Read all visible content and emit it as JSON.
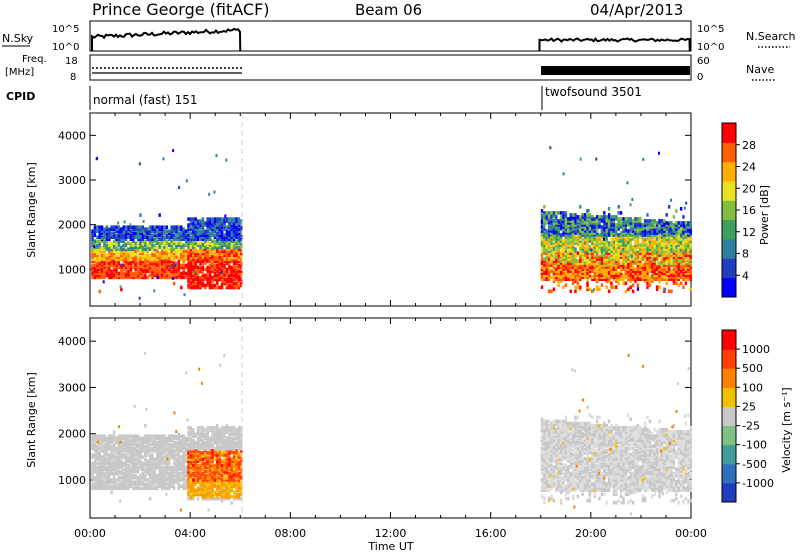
{
  "header": {
    "station": "Prince George (fitACF)",
    "beam": "Beam 06",
    "date": "04/Apr/2013"
  },
  "top_panels": {
    "nsky_label": "N.Sky",
    "nsky_ticks": [
      "10^5",
      "10^0"
    ],
    "nsearch_label": "N.Search",
    "nsearch_ticks": [
      "10^5",
      "10^0"
    ],
    "freq_label_1": "Freq.",
    "freq_label_2": "[MHz]",
    "freq_ticks": [
      "18",
      "8"
    ],
    "nave_label": "Nave",
    "nave_ticks": [
      "60",
      "0"
    ],
    "cpid_label": "CPID",
    "cpid_segments": [
      "normal (fast) 151",
      "twofsound 3501"
    ]
  },
  "chart_data": [
    {
      "type": "heatmap",
      "title": "",
      "xlabel": "Time UT",
      "ylabel": "Slant Range [km]",
      "xlim": [
        "00:00",
        "24:00"
      ],
      "ylim": [
        180,
        4500
      ],
      "yticks": [
        "1000",
        "2000",
        "3000",
        "4000"
      ],
      "xticks": [
        "00:00",
        "04:00",
        "08:00",
        "12:00",
        "16:00",
        "20:00",
        "00:00"
      ],
      "colorbar": {
        "label": "Power [dB]",
        "ticks": [
          "28",
          "24",
          "20",
          "16",
          "12",
          "8",
          "4"
        ],
        "colors": [
          "#0000ff",
          "#1f3fbf",
          "#2f7f9f",
          "#3f9f5f",
          "#7fbf3f",
          "#e8e020",
          "#ffb000",
          "#ff6000",
          "#ff0000"
        ]
      },
      "segments": [
        {
          "start": "00:00",
          "end": "06:00",
          "cpid": "normal (fast) 151"
        },
        {
          "start": "18:00",
          "end": "24:00",
          "cpid": "twofsound 3501"
        }
      ]
    },
    {
      "type": "heatmap",
      "title": "",
      "xlabel": "Time UT",
      "ylabel": "Slant Range [km]",
      "xlim": [
        "00:00",
        "24:00"
      ],
      "ylim": [
        180,
        4500
      ],
      "yticks": [
        "1000",
        "2000",
        "3000",
        "4000"
      ],
      "xticks": [
        "00:00",
        "04:00",
        "08:00",
        "12:00",
        "16:00",
        "20:00",
        "00:00"
      ],
      "colorbar": {
        "label": "Velocity [m s⁻¹]",
        "ticks": [
          "1000",
          "500",
          "100",
          "25",
          "-25",
          "-100",
          "-500",
          "-1000"
        ],
        "colors": [
          "#1f3fbf",
          "#2f6fbf",
          "#3f9f9f",
          "#7fbf7f",
          "#c8c8c8",
          "#f0c000",
          "#ff8000",
          "#ff4000",
          "#ff0000"
        ]
      }
    }
  ]
}
